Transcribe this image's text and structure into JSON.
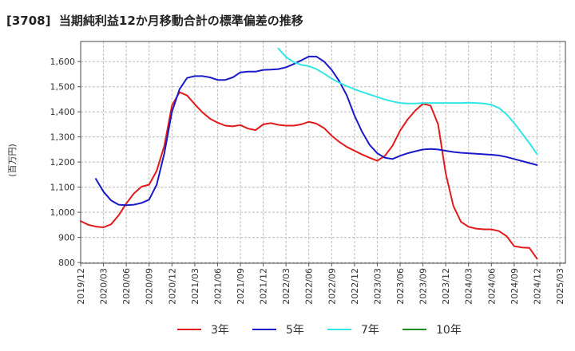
{
  "chart_data": {
    "type": "line",
    "title": "[3708]  当期純利益12か月移動合計の標準偏差の推移",
    "xlabel": "",
    "ylabel": "(百万円)",
    "ylim": [
      797,
      1680
    ],
    "yticks": [
      800,
      900,
      1000,
      1100,
      1200,
      1300,
      1400,
      1500,
      1600
    ],
    "ytick_labels": [
      "800",
      "900",
      "1,000",
      "1,100",
      "1,200",
      "1,300",
      "1,400",
      "1,500",
      "1,600"
    ],
    "xticks": [
      "2019/12",
      "2020/03",
      "2020/06",
      "2020/09",
      "2020/12",
      "2021/03",
      "2021/06",
      "2021/09",
      "2021/12",
      "2022/03",
      "2022/06",
      "2022/09",
      "2022/12",
      "2023/03",
      "2023/06",
      "2023/09",
      "2023/12",
      "2024/03",
      "2024/06",
      "2024/09",
      "2024/12",
      "2025/03"
    ],
    "months_per_xtick": 3,
    "grid": true,
    "legend_position": "bottom",
    "series": [
      {
        "name": "3年",
        "color": "#e31a1c",
        "start_month": 0,
        "values": [
          965,
          950,
          943,
          940,
          952,
          988,
          1035,
          1075,
          1102,
          1110,
          1165,
          1265,
          1425,
          1478,
          1465,
          1430,
          1398,
          1373,
          1357,
          1345,
          1342,
          1347,
          1333,
          1327,
          1350,
          1355,
          1348,
          1345,
          1345,
          1350,
          1360,
          1353,
          1335,
          1305,
          1280,
          1260,
          1245,
          1230,
          1217,
          1205,
          1225,
          1265,
          1325,
          1370,
          1405,
          1432,
          1425,
          1350,
          1155,
          1025,
          962,
          942,
          935,
          932,
          932,
          925,
          905,
          865,
          860,
          858,
          815
        ]
      },
      {
        "name": "5年",
        "color": "#1a1ac8",
        "start_month": 2,
        "values": [
          1133,
          1082,
          1047,
          1030,
          1028,
          1030,
          1037,
          1050,
          1110,
          1235,
          1400,
          1490,
          1535,
          1542,
          1542,
          1537,
          1527,
          1527,
          1537,
          1557,
          1560,
          1560,
          1567,
          1568,
          1570,
          1577,
          1590,
          1605,
          1620,
          1620,
          1600,
          1567,
          1522,
          1465,
          1385,
          1320,
          1268,
          1235,
          1217,
          1212,
          1225,
          1235,
          1243,
          1250,
          1252,
          1250,
          1245,
          1240,
          1237,
          1235,
          1233,
          1231,
          1229,
          1226,
          1220,
          1212,
          1204,
          1196,
          1188
        ]
      },
      {
        "name": "7年",
        "color": "#33e6e6",
        "start_month": 26,
        "values": [
          1652,
          1618,
          1598,
          1587,
          1582,
          1570,
          1552,
          1532,
          1516,
          1502,
          1490,
          1479,
          1469,
          1459,
          1449,
          1441,
          1435,
          1433,
          1433,
          1435,
          1435,
          1435,
          1435,
          1435,
          1435,
          1436,
          1435,
          1433,
          1428,
          1415,
          1390,
          1355,
          1315,
          1275,
          1232
        ]
      },
      {
        "name": "10年",
        "color": "#1e8c1e",
        "start_month": null,
        "values": []
      }
    ]
  }
}
